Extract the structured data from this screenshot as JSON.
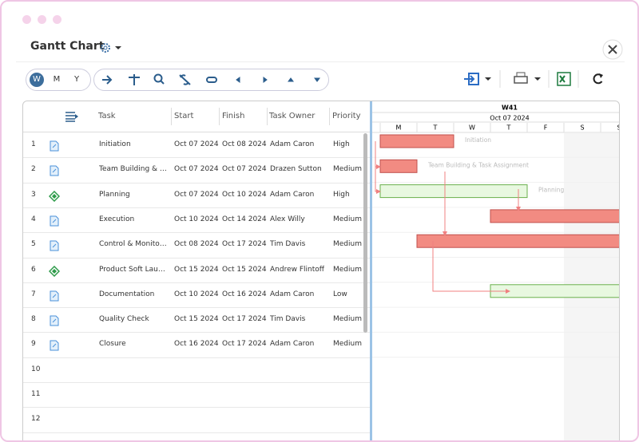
{
  "header": {
    "title": "Gantt Chart"
  },
  "toolbar": {
    "views": [
      "W",
      "M",
      "Y"
    ]
  },
  "table": {
    "columns": [
      "Task",
      "Start",
      "Finish",
      "Task Owner",
      "Priority"
    ],
    "rows": [
      [
        1,
        "Initiation",
        "Oct 07 2024",
        "Oct 08 2024",
        "Adam Caron",
        "High"
      ],
      [
        2,
        "Team Building & Task Assignment",
        "Oct 07 2024",
        "Oct 07 2024",
        "Drazen Sutton",
        "Medium"
      ],
      [
        3,
        "Planning",
        "Oct 07 2024",
        "Oct 10 2024",
        "Adam Caron",
        "High"
      ],
      [
        4,
        "Execution",
        "Oct 10 2024",
        "Oct 14 2024",
        "Alex Willy",
        "Medium"
      ],
      [
        5,
        "Control & Monitoring",
        "Oct 08 2024",
        "Oct 17 2024",
        "Tim Davis",
        "Medium"
      ],
      [
        6,
        "Product Soft Launch",
        "Oct 15 2024",
        "Oct 15 2024",
        "Andrew Flintoff",
        "Medium"
      ],
      [
        7,
        "Documentation",
        "Oct 10 2024",
        "Oct 16 2024",
        "Adam Caron",
        "Low"
      ],
      [
        8,
        "Quality Check",
        "Oct 15 2024",
        "Oct 17 2024",
        "Tim Davis",
        "Medium"
      ],
      [
        9,
        "Closure",
        "Oct 16 2024",
        "Oct 17 2024",
        "Adam Caron",
        "Medium"
      ]
    ],
    "empty_rows": [
      10,
      11,
      12
    ]
  },
  "timeline": {
    "week": "W41",
    "date": "Oct 07 2024",
    "days": [
      "M",
      "T",
      "W",
      "T",
      "F",
      "S",
      "S"
    ]
  }
}
